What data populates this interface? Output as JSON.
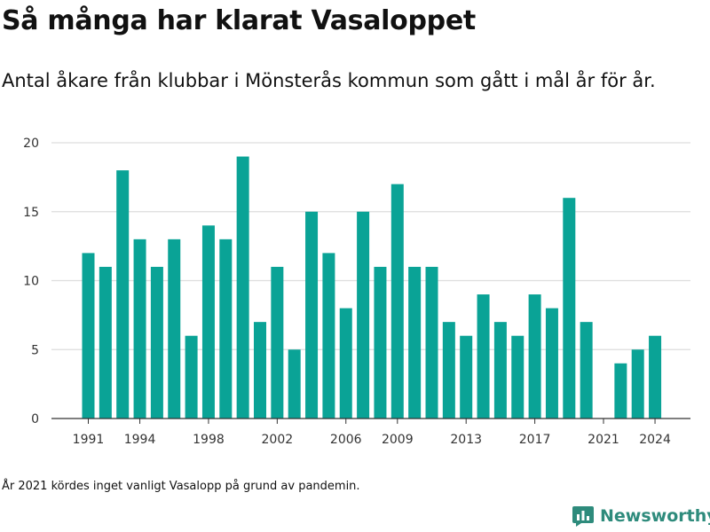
{
  "title": "Så många har klarat Vasaloppet",
  "subtitle": "Antal åkare från klubbar i Mönsterås kommun som gått i mål år för år.",
  "footnote": "År 2021 kördes inget vanligt Vasalopp på grund av pandemin.",
  "brand": {
    "name": "Newsworthy",
    "color": "#2e8b7c",
    "icon": "bar-chart-logo-icon"
  },
  "chart_data": {
    "type": "bar",
    "title": "",
    "xlabel": "",
    "ylabel": "",
    "color": "#0aa396",
    "ylim": [
      0,
      20
    ],
    "yticks": [
      0,
      5,
      10,
      15,
      20
    ],
    "xtick_labels": [
      "1991",
      "1994",
      "1998",
      "2002",
      "2006",
      "2009",
      "2013",
      "2017",
      "2021",
      "2024"
    ],
    "grid": true,
    "categories": [
      1991,
      1992,
      1993,
      1994,
      1995,
      1996,
      1997,
      1998,
      1999,
      2000,
      2001,
      2002,
      2003,
      2004,
      2005,
      2006,
      2007,
      2008,
      2009,
      2010,
      2011,
      2012,
      2013,
      2014,
      2015,
      2016,
      2017,
      2018,
      2019,
      2020,
      2021,
      2022,
      2023,
      2024
    ],
    "values": [
      12,
      11,
      18,
      13,
      11,
      13,
      6,
      14,
      13,
      19,
      7,
      11,
      5,
      15,
      12,
      8,
      15,
      11,
      17,
      11,
      11,
      7,
      6,
      9,
      7,
      6,
      9,
      8,
      16,
      7,
      0,
      4,
      5,
      6
    ]
  }
}
